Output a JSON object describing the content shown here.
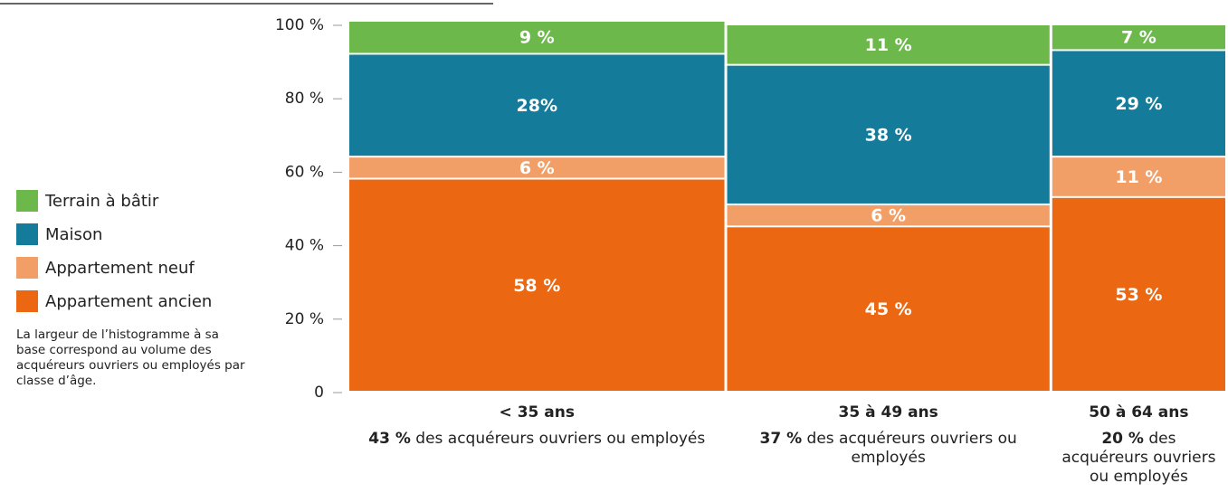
{
  "chart_data": {
    "type": "marimekko",
    "categories": [
      "< 35 ans",
      "35 à 49 ans",
      "50 à 64 ans"
    ],
    "widths": [
      43,
      37,
      20
    ],
    "width_labels": [
      "43 %",
      "37 %",
      "20 %"
    ],
    "width_caption": "des acquéreurs ouvriers ou employés",
    "series": [
      {
        "name": "Appartement ancien",
        "color": "#eb6712",
        "values": [
          58,
          45,
          53
        ],
        "value_labels": [
          "58 %",
          "45 %",
          "53 %"
        ]
      },
      {
        "name": "Appartement neuf",
        "color": "#f29e67",
        "values": [
          6,
          6,
          11
        ],
        "value_labels": [
          "6 %",
          "6 %",
          "11 %"
        ]
      },
      {
        "name": "Maison",
        "color": "#147c9a",
        "values": [
          28,
          38,
          29
        ],
        "value_labels": [
          "28%",
          "38 %",
          "29 %"
        ]
      },
      {
        "name": "Terrain à bâtir",
        "color": "#6cb84b",
        "values": [
          9,
          11,
          7
        ],
        "value_labels": [
          "9 %",
          "11 %",
          "7 %"
        ]
      }
    ],
    "ylim": [
      0,
      100
    ],
    "yticks": [
      0,
      {
        "value": 20,
        "label": "20 %"
      },
      {
        "value": 40,
        "label": "40 %"
      },
      {
        "value": 60,
        "label": "60 %"
      },
      {
        "value": 80,
        "label": "80 %"
      },
      {
        "value": 100,
        "label": "100 %"
      }
    ],
    "legend_position": "left",
    "note": "La largeur de l’histogramme à sa base correspond au volume des acquéreurs ouvriers ou employés par classe d’âge."
  }
}
